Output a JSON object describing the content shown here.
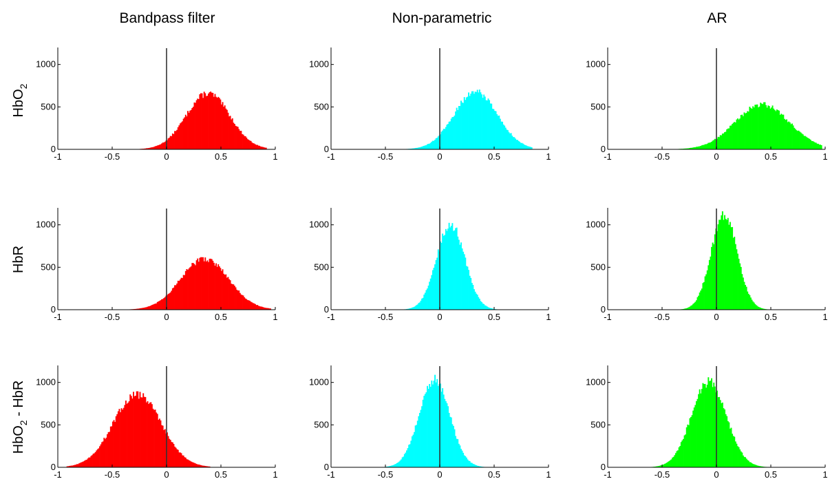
{
  "figure": {
    "columns": [
      "Bandpass filter",
      "Non-parametric",
      "AR"
    ],
    "rows": [
      {
        "text": "HbO",
        "sub": "2",
        "suffix": ""
      },
      {
        "text": "HbR",
        "sub": "",
        "suffix": ""
      },
      {
        "text": "HbO",
        "sub": "2",
        "suffix": " - HbR"
      }
    ],
    "colors": {
      "Bandpass filter": "#ff0000",
      "Non-parametric": "#00ffff",
      "AR": "#00ff00"
    },
    "vline_color": "#333333"
  },
  "chart_data": [
    {
      "type": "bar",
      "method": "Bandpass filter",
      "row": "HbO2",
      "color": "#ff0000",
      "x_ticks": [
        -1,
        -0.5,
        0,
        0.5,
        1
      ],
      "xlim": [
        -1,
        1
      ],
      "y_ticks": [
        0,
        500,
        1000
      ],
      "ylim": [
        0,
        1200
      ],
      "vline_x": 0,
      "histogram": {
        "bin_width": 0.01,
        "mean": 0.38,
        "sd": 0.2,
        "peak": 660,
        "support": [
          -0.25,
          0.92
        ]
      }
    },
    {
      "type": "bar",
      "method": "Non-parametric",
      "row": "HbO2",
      "color": "#00ffff",
      "x_ticks": [
        -1,
        -0.5,
        0,
        0.5,
        1
      ],
      "xlim": [
        -1,
        1
      ],
      "y_ticks": [
        0,
        500,
        1000
      ],
      "ylim": [
        0,
        1200
      ],
      "vline_x": 0,
      "histogram": {
        "bin_width": 0.01,
        "mean": 0.33,
        "sd": 0.2,
        "peak": 680,
        "support": [
          -0.33,
          0.85
        ]
      }
    },
    {
      "type": "bar",
      "method": "AR",
      "row": "HbO2",
      "color": "#00ff00",
      "x_ticks": [
        -1,
        -0.5,
        0,
        0.5,
        1
      ],
      "xlim": [
        -1,
        1
      ],
      "y_ticks": [
        0,
        500,
        1000
      ],
      "ylim": [
        0,
        1200
      ],
      "vline_x": 0,
      "histogram": {
        "bin_width": 0.01,
        "mean": 0.42,
        "sd": 0.25,
        "peak": 530,
        "support": [
          -0.45,
          0.97
        ]
      }
    },
    {
      "type": "bar",
      "method": "Bandpass filter",
      "row": "HbR",
      "color": "#ff0000",
      "x_ticks": [
        -1,
        -0.5,
        0,
        0.5,
        1
      ],
      "xlim": [
        -1,
        1
      ],
      "y_ticks": [
        0,
        500,
        1000
      ],
      "ylim": [
        0,
        1200
      ],
      "vline_x": 0,
      "histogram": {
        "bin_width": 0.01,
        "mean": 0.35,
        "sd": 0.22,
        "peak": 600,
        "support": [
          -0.35,
          0.96
        ]
      }
    },
    {
      "type": "bar",
      "method": "Non-parametric",
      "row": "HbR",
      "color": "#00ffff",
      "x_ticks": [
        -1,
        -0.5,
        0,
        0.5,
        1
      ],
      "xlim": [
        -1,
        1
      ],
      "y_ticks": [
        0,
        500,
        1000
      ],
      "ylim": [
        0,
        1200
      ],
      "vline_x": 0,
      "histogram": {
        "bin_width": 0.01,
        "mean": 0.1,
        "sd": 0.13,
        "peak": 1000,
        "support": [
          -0.45,
          0.75
        ]
      }
    },
    {
      "type": "bar",
      "method": "AR",
      "row": "HbR",
      "color": "#00ff00",
      "x_ticks": [
        -1,
        -0.5,
        0,
        0.5,
        1
      ],
      "xlim": [
        -1,
        1
      ],
      "y_ticks": [
        0,
        500,
        1000
      ],
      "ylim": [
        0,
        1200
      ],
      "vline_x": 0,
      "histogram": {
        "bin_width": 0.01,
        "mean": 0.07,
        "sd": 0.12,
        "peak": 1120,
        "support": [
          -0.4,
          0.65
        ]
      }
    },
    {
      "type": "bar",
      "method": "Bandpass filter",
      "row": "HbO2 - HbR",
      "color": "#ff0000",
      "x_ticks": [
        -1,
        -0.5,
        0,
        0.5,
        1
      ],
      "xlim": [
        -1,
        1
      ],
      "y_ticks": [
        0,
        500,
        1000
      ],
      "ylim": [
        0,
        1200
      ],
      "vline_x": 0,
      "histogram": {
        "bin_width": 0.01,
        "mean": -0.27,
        "sd": 0.22,
        "peak": 860,
        "support": [
          -0.92,
          0.4
        ]
      }
    },
    {
      "type": "bar",
      "method": "Non-parametric",
      "row": "HbO2 - HbR",
      "color": "#00ffff",
      "x_ticks": [
        -1,
        -0.5,
        0,
        0.5,
        1
      ],
      "xlim": [
        -1,
        1
      ],
      "y_ticks": [
        0,
        500,
        1000
      ],
      "ylim": [
        0,
        1200
      ],
      "vline_x": 0,
      "histogram": {
        "bin_width": 0.01,
        "mean": -0.05,
        "sd": 0.14,
        "peak": 1030,
        "support": [
          -0.6,
          0.6
        ]
      }
    },
    {
      "type": "bar",
      "method": "AR",
      "row": "HbO2 - HbR",
      "color": "#00ff00",
      "x_ticks": [
        -1,
        -0.5,
        0,
        0.5,
        1
      ],
      "xlim": [
        -1,
        1
      ],
      "y_ticks": [
        0,
        500,
        1000
      ],
      "ylim": [
        0,
        1200
      ],
      "vline_x": 0,
      "histogram": {
        "bin_width": 0.01,
        "mean": -0.07,
        "sd": 0.16,
        "peak": 1010,
        "support": [
          -0.8,
          0.6
        ]
      }
    }
  ]
}
